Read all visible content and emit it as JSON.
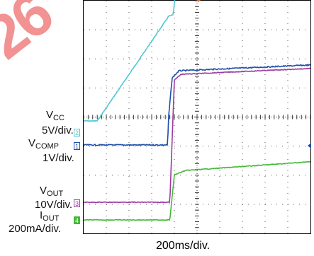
{
  "watermark": "26",
  "labels": {
    "vcc_main": "V",
    "vcc_sub": "CC",
    "vcc_scale": "5V/div.",
    "vcomp_main": "V",
    "vcomp_sub": "COMP",
    "vcomp_scale": "1V/div.",
    "vout_main": "V",
    "vout_sub": "OUT",
    "vout_scale": "10V/div.",
    "iout_main": "I",
    "iout_sub": "OUT",
    "iout_scale": "200mA/div.",
    "xaxis": "200ms/div."
  },
  "markers": {
    "ch1": "1",
    "ch2": "2",
    "ch3": "3",
    "ch4": "4"
  },
  "colors": {
    "vcc": "#4fc8d0",
    "vcomp": "#1f4fa8",
    "vout": "#9b3aa0",
    "iout": "#46b83a",
    "watermark": "#f08080"
  },
  "chart_data": {
    "type": "line",
    "title": "",
    "xlabel": "200ms/div.",
    "x_divisions": 10,
    "y_divisions": 8,
    "grid": true,
    "series": [
      {
        "name": "VCC",
        "scale": "5V/div.",
        "x": [
          0,
          0.6,
          3.75,
          3.95,
          4.1,
          4.4,
          10
        ],
        "y": [
          -0.05,
          -0.05,
          3.55,
          3.6,
          4.8,
          4.85,
          5.0
        ]
      },
      {
        "name": "VCOMP",
        "scale": "1V/div.",
        "x": [
          0,
          3.7,
          3.75,
          3.9,
          4.2,
          10
        ],
        "y": [
          0,
          0,
          1.0,
          2.3,
          2.55,
          2.75
        ]
      },
      {
        "name": "VOUT",
        "scale": "10V/div.",
        "x": [
          0,
          3.8,
          4.0,
          4.3,
          10
        ],
        "y": [
          0,
          0,
          4.2,
          4.4,
          4.6
        ]
      },
      {
        "name": "IOUT",
        "scale": "200mA/div.",
        "x": [
          0,
          3.8,
          4.0,
          4.5,
          10
        ],
        "y": [
          0,
          0,
          1.55,
          1.7,
          2.0
        ]
      }
    ]
  }
}
